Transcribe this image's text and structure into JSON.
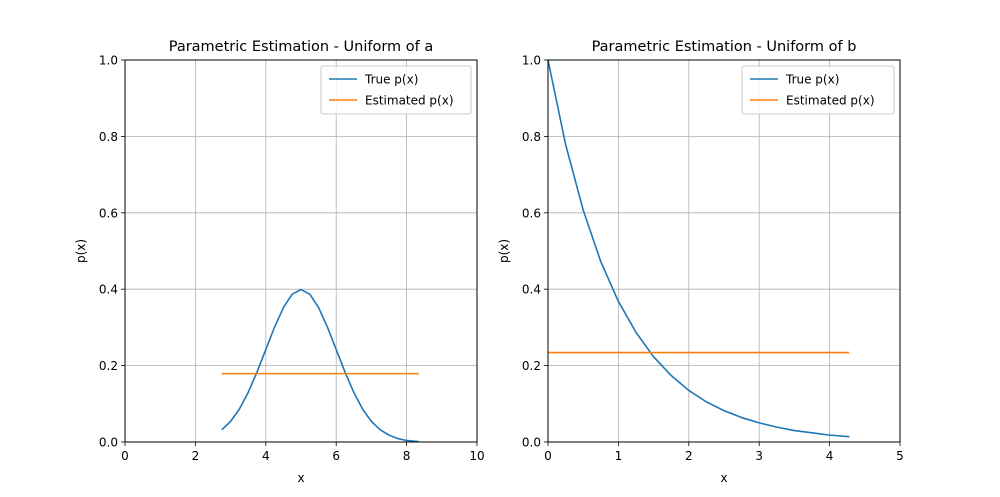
{
  "figure": {
    "background": "#ffffff",
    "grid_color": "#b0b0b0"
  },
  "chart_data": [
    {
      "type": "line",
      "title": "Parametric Estimation - Uniform of a",
      "xlabel": "x",
      "ylabel": "p(x)",
      "xlim": [
        0,
        10
      ],
      "ylim": [
        0,
        1.0
      ],
      "xticks": [
        0,
        2,
        4,
        6,
        8,
        10
      ],
      "xtick_labels": [
        "0",
        "2",
        "4",
        "6",
        "8",
        "10"
      ],
      "yticks": [
        0.0,
        0.2,
        0.4,
        0.6,
        0.8,
        1.0
      ],
      "ytick_labels": [
        "0.0",
        "0.2",
        "0.4",
        "0.6",
        "0.8",
        "1.0"
      ],
      "grid": true,
      "legend_position": "top-right",
      "series": [
        {
          "name": "True p(x)",
          "color": "#1f77b4",
          "x": [
            2.75,
            3.0,
            3.25,
            3.5,
            3.75,
            4.0,
            4.25,
            4.5,
            4.75,
            5.0,
            5.25,
            5.5,
            5.75,
            6.0,
            6.25,
            6.5,
            6.75,
            7.0,
            7.25,
            7.5,
            7.75,
            8.0,
            8.25,
            8.35
          ],
          "y": [
            0.032,
            0.054,
            0.086,
            0.13,
            0.183,
            0.242,
            0.301,
            0.352,
            0.387,
            0.399,
            0.387,
            0.352,
            0.301,
            0.242,
            0.183,
            0.13,
            0.086,
            0.054,
            0.032,
            0.018,
            0.009,
            0.004,
            0.002,
            0.001
          ]
        },
        {
          "name": "Estimated p(x)",
          "color": "#ff7f0e",
          "x": [
            2.75,
            8.35
          ],
          "y": [
            0.179,
            0.179
          ]
        }
      ]
    },
    {
      "type": "line",
      "title": "Parametric Estimation - Uniform of b",
      "xlabel": "x",
      "ylabel": "p(x)",
      "xlim": [
        0,
        5
      ],
      "ylim": [
        0,
        1.0
      ],
      "xticks": [
        0,
        1,
        2,
        3,
        4,
        5
      ],
      "xtick_labels": [
        "0",
        "1",
        "2",
        "3",
        "4",
        "5"
      ],
      "yticks": [
        0.0,
        0.2,
        0.4,
        0.6,
        0.8,
        1.0
      ],
      "ytick_labels": [
        "0.0",
        "0.2",
        "0.4",
        "0.6",
        "0.8",
        "1.0"
      ],
      "grid": true,
      "legend_position": "top-right",
      "series": [
        {
          "name": "True p(x)",
          "color": "#1f77b4",
          "x": [
            0.0,
            0.25,
            0.5,
            0.75,
            1.0,
            1.25,
            1.5,
            1.75,
            2.0,
            2.25,
            2.5,
            2.75,
            3.0,
            3.25,
            3.5,
            3.75,
            4.0,
            4.28
          ],
          "y": [
            1.0,
            0.779,
            0.607,
            0.472,
            0.368,
            0.287,
            0.223,
            0.174,
            0.135,
            0.105,
            0.082,
            0.064,
            0.05,
            0.039,
            0.03,
            0.024,
            0.018,
            0.014
          ]
        },
        {
          "name": "Estimated p(x)",
          "color": "#ff7f0e",
          "x": [
            0.0,
            4.28
          ],
          "y": [
            0.234,
            0.234
          ]
        }
      ]
    }
  ]
}
